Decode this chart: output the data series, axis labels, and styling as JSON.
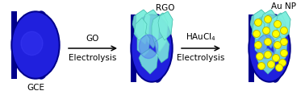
{
  "bg_color": "#ffffff",
  "elec_dark": "#00008B",
  "elec_face": "#2020dd",
  "elec_rim": "#000077",
  "elec_highlight": "#4444ff",
  "rgo_fill": "#7eeedd",
  "rgo_edge": "#44bbaa",
  "rgo_alpha": 0.85,
  "au_fill": "#ffff00",
  "au_edge": "#bbbb00",
  "arrow_color": "#000000",
  "text_color": "#000000",
  "gce_label": "GCE",
  "rgo_label": "RGO",
  "aunp_label": "Au NP",
  "arrow1_top": "GO",
  "arrow1_bot": "Electrolysis",
  "arrow2_top": "HAuCl$_4$",
  "arrow2_bot": "Electrolysis",
  "fig_width": 3.78,
  "fig_height": 1.18,
  "dpi": 100
}
